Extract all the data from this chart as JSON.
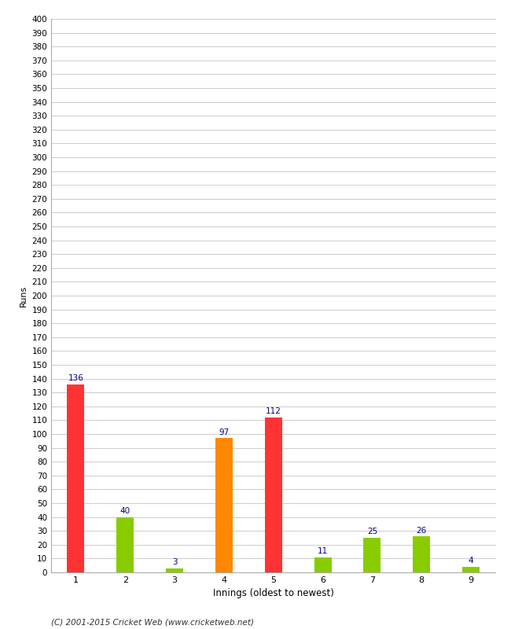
{
  "categories": [
    "1",
    "2",
    "3",
    "4",
    "5",
    "6",
    "7",
    "8",
    "9"
  ],
  "values": [
    136,
    40,
    3,
    97,
    112,
    11,
    25,
    26,
    4
  ],
  "bar_colors": [
    "#ff3333",
    "#88cc00",
    "#88cc00",
    "#ff8800",
    "#ff3333",
    "#88cc00",
    "#88cc00",
    "#88cc00",
    "#88cc00"
  ],
  "xlabel": "Innings (oldest to newest)",
  "ylabel": "Runs",
  "ylim": [
    0,
    400
  ],
  "background_color": "#ffffff",
  "grid_color": "#cccccc",
  "label_color": "#000080",
  "label_fontsize": 7.5,
  "footer": "(C) 2001-2015 Cricket Web (www.cricketweb.net)"
}
